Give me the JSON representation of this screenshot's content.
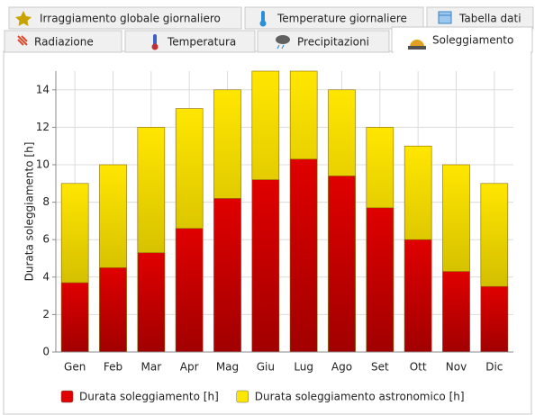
{
  "tabs": {
    "row1": [
      "Irraggiamento globale giornaliero",
      "Temperature giornaliere",
      "Tabella dati"
    ],
    "row2": [
      "Radiazione",
      "Temperatura",
      "Precipitazioni",
      "Soleggiamento"
    ]
  },
  "chart_data": {
    "type": "bar",
    "mode": "overlap",
    "y_label": "Durata soleggiamento [h]",
    "categories": [
      "Gen",
      "Feb",
      "Mar",
      "Apr",
      "Mag",
      "Giu",
      "Lug",
      "Ago",
      "Set",
      "Ott",
      "Nov",
      "Dic"
    ],
    "series": [
      {
        "name": "Durata soleggiamento astronomico [h]",
        "color": "#ffe600",
        "values": [
          9,
          10,
          12,
          13,
          14,
          15,
          15,
          14,
          12,
          11,
          10,
          9
        ]
      },
      {
        "name": "Durata soleggiamento [h]",
        "color": "#e00000",
        "values": [
          3.7,
          4.5,
          5.3,
          6.6,
          8.2,
          9.2,
          10.3,
          9.4,
          7.7,
          6.0,
          4.3,
          3.5
        ]
      }
    ],
    "legend_order": [
      1,
      0
    ],
    "ylim": [
      0,
      15
    ],
    "yticks": [
      0,
      2,
      4,
      6,
      8,
      10,
      12,
      14
    ],
    "grid": true
  }
}
